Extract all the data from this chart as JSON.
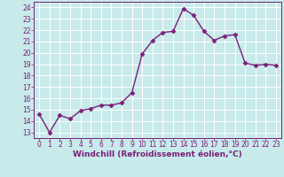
{
  "x": [
    0,
    1,
    2,
    3,
    4,
    5,
    6,
    7,
    8,
    9,
    10,
    11,
    12,
    13,
    14,
    15,
    16,
    17,
    18,
    19,
    20,
    21,
    22,
    23
  ],
  "y": [
    14.6,
    13.0,
    14.5,
    14.2,
    14.9,
    15.1,
    15.4,
    15.4,
    15.6,
    16.5,
    19.9,
    21.1,
    21.8,
    21.9,
    23.9,
    23.3,
    21.9,
    21.1,
    21.5,
    21.6,
    19.1,
    18.9,
    19.0,
    18.9
  ],
  "line_color": "#7B1F7B",
  "marker": "D",
  "marker_size": 2.5,
  "xlabel": "Windchill (Refroidissement éolien,°C)",
  "xlim": [
    -0.5,
    23.5
  ],
  "ylim": [
    12.5,
    24.5
  ],
  "yticks": [
    13,
    14,
    15,
    16,
    17,
    18,
    19,
    20,
    21,
    22,
    23,
    24
  ],
  "xticks": [
    0,
    1,
    2,
    3,
    4,
    5,
    6,
    7,
    8,
    9,
    10,
    11,
    12,
    13,
    14,
    15,
    16,
    17,
    18,
    19,
    20,
    21,
    22,
    23
  ],
  "background_color": "#c8eaea",
  "grid_color": "#ffffff",
  "line_width": 1.0,
  "label_color": "#7B1F7B",
  "tick_color": "#7B1F7B",
  "spine_color": "#7B1F7B",
  "label_fontsize": 6.5,
  "tick_fontsize": 5.5
}
